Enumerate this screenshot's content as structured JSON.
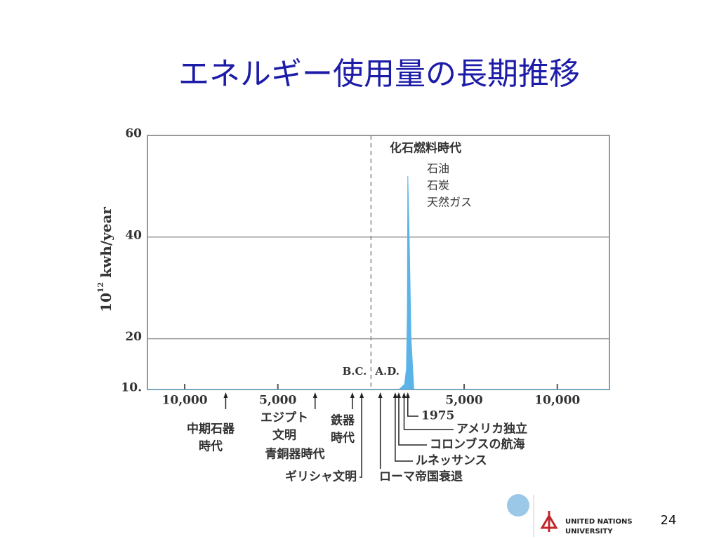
{
  "title": "エネルギー使用量の長期推移",
  "chart_data": {
    "type": "area",
    "y_label": {
      "base": "10",
      "exponent": "12",
      "unit": "kwh/year"
    },
    "x": [
      -12000,
      1500,
      1800,
      1900,
      1950,
      1975,
      2050,
      2150,
      2300,
      12800
    ],
    "values": [
      10,
      10,
      11,
      14,
      25,
      52,
      40,
      20,
      10,
      10
    ],
    "color": "#5ab4e8",
    "xlim": [
      -12000,
      12800
    ],
    "xticks": [
      {
        "value": -10000,
        "label": "10,000"
      },
      {
        "value": -5000,
        "label": "5,000"
      },
      {
        "value": 5000,
        "label": "5,000"
      },
      {
        "value": 10000,
        "label": "10,000"
      }
    ],
    "ylim": [
      10,
      60
    ],
    "yticks": [
      {
        "value": 10,
        "label": "10."
      },
      20,
      40,
      60
    ],
    "grid": true,
    "divider_x": 0,
    "era_labels": [
      "B.C.",
      "A.D."
    ],
    "annotation": {
      "title": "化石燃料時代",
      "items": [
        "石油",
        "石炭",
        "天然ガス"
      ]
    },
    "events": [
      {
        "label": [
          "中期石器",
          "時代"
        ],
        "x": -7800
      },
      {
        "label": [
          "エジプト",
          "文明"
        ],
        "x": -3000
      },
      {
        "label": [
          "鉄器",
          "時代"
        ],
        "x": -1000
      },
      {
        "label": [
          "ギリシャ文明"
        ],
        "x": -500
      },
      {
        "label": [
          "ローマ帝国衰退"
        ],
        "x": 500
      },
      {
        "label": [
          "ルネッサンス"
        ],
        "x": 1300
      },
      {
        "label": [
          "コロンブスの航海"
        ],
        "x": 1492
      },
      {
        "label": [
          "アメリカ独立"
        ],
        "x": 1776
      },
      {
        "label": [
          "1975"
        ],
        "x": 1975
      }
    ],
    "extra_label": "青銅器時代"
  },
  "page_number": "24",
  "logo": {
    "lines": [
      "UNITED NATIONS",
      "UNIVERSITY"
    ]
  }
}
